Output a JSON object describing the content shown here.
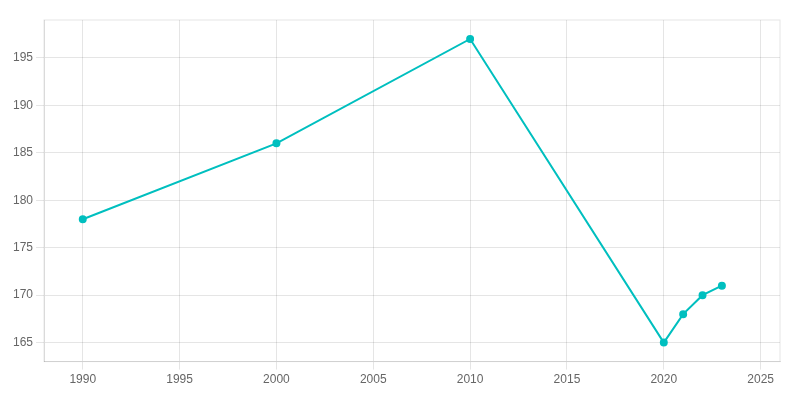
{
  "chart_data": {
    "type": "line",
    "x": [
      1990,
      2000,
      2010,
      2020,
      2021,
      2022,
      2023
    ],
    "values": [
      178,
      186,
      197,
      165,
      168,
      170,
      171
    ],
    "color": "#00BFBF",
    "marker": "circle",
    "xlim": [
      1988,
      2026
    ],
    "ylim": [
      163,
      199
    ],
    "xticks": [
      1990,
      1995,
      2000,
      2005,
      2010,
      2015,
      2020,
      2025
    ],
    "yticks": [
      165,
      170,
      175,
      180,
      185,
      190,
      195
    ],
    "grid": true
  }
}
